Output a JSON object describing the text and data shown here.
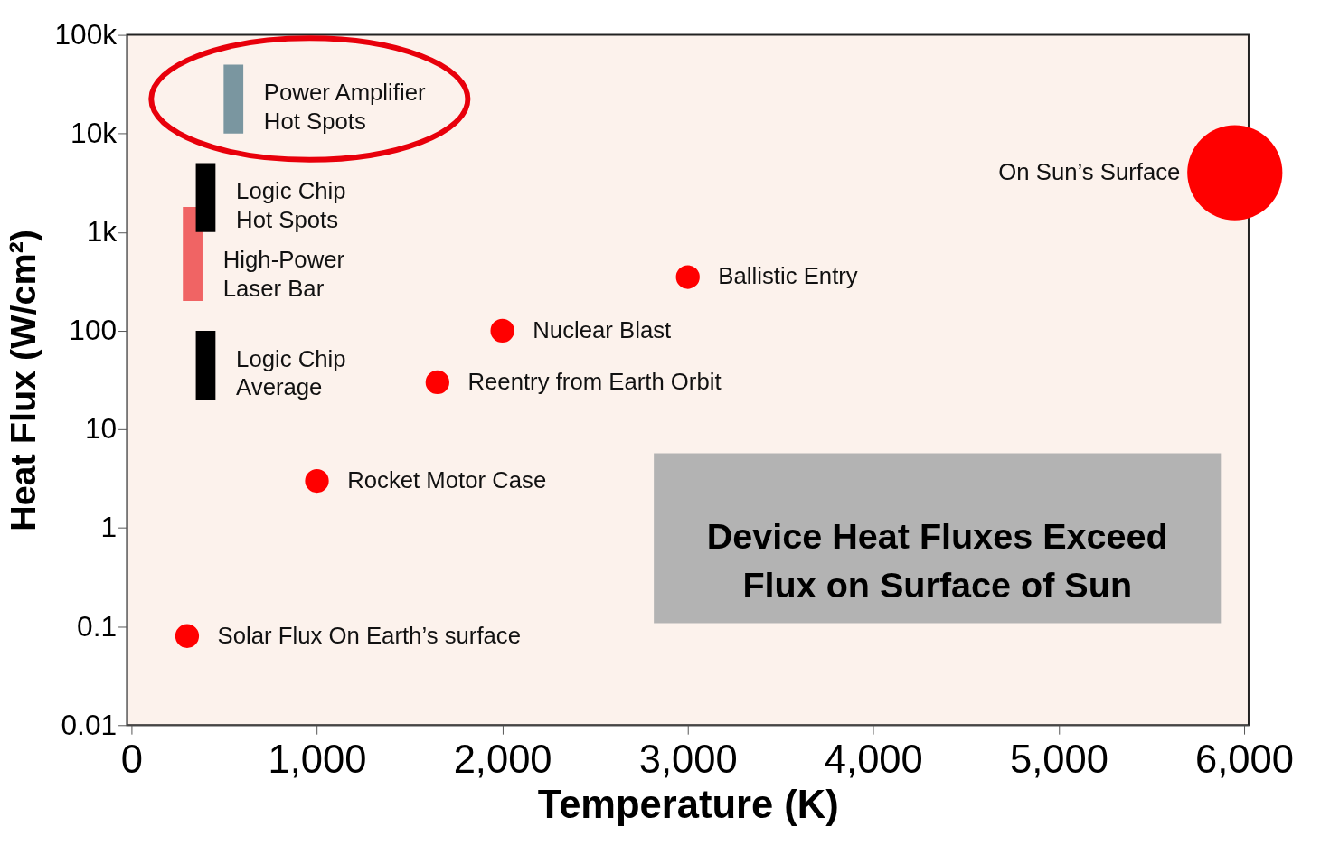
{
  "chart_data": {
    "type": "bubble",
    "xlabel": "Temperature (K)",
    "ylabel": "Heat Flux (W/cm²)",
    "log": "y",
    "grid": false,
    "xlim": [
      0,
      6000
    ],
    "xticks": [
      0,
      {
        "value": 1000,
        "label": "1,000"
      },
      {
        "value": 2000,
        "label": "2,000"
      },
      {
        "value": 3000,
        "label": "3,000"
      },
      {
        "value": 4000,
        "label": "4,000"
      },
      {
        "value": 5000,
        "label": "5,000"
      },
      {
        "value": 6000,
        "label": "6,000"
      }
    ],
    "ylim": [
      0.01,
      100000
    ],
    "yticks": [
      0.01,
      0.1,
      1,
      10,
      100,
      {
        "value": 1000,
        "label": "1k"
      },
      {
        "value": 10000,
        "label": "10k"
      },
      {
        "value": 100000,
        "label": "100k"
      }
    ],
    "series": [
      {
        "color": "#ff0000",
        "x": [
          300,
          1000,
          1650,
          2000,
          3000,
          5950
        ],
        "values": [
          0.08,
          3,
          30,
          100,
          350,
          4000
        ],
        "sizes": [
          0.0625,
          0.0625,
          0.0625,
          0.0625,
          0.0625,
          1
        ]
      },
      {
        "type": "bar",
        "x": [
          330
        ],
        "base": [
          200
        ],
        "values": [
          1600
        ],
        "color": "#f06464"
      },
      {
        "type": "bar",
        "x": [
          400
        ],
        "base": [
          1000
        ],
        "values": [
          4000
        ],
        "color": "#000000"
      },
      {
        "type": "bar",
        "x": [
          400
        ],
        "base": [
          20
        ],
        "values": [
          80
        ],
        "color": "#000000"
      },
      {
        "type": "bar",
        "x": [
          550
        ],
        "base": [
          10000
        ],
        "values": [
          40000
        ],
        "color": "#7a96a0"
      }
    ],
    "annotations": [
      {
        "text": "Power Amplifier\nHot Spots",
        "x": 550,
        "y": 10000
      },
      {
        "text": "Logic Chip\nHot Spots",
        "x": 400,
        "y": 1000
      },
      {
        "text": "High-Power\nLaser Bar",
        "x": 330,
        "y": 200
      },
      {
        "text": "Logic Chip\nAverage",
        "x": 400,
        "y": 20
      },
      {
        "text": "Solar Flux On Earth’s surface",
        "x": 300,
        "y": 0.08
      },
      {
        "text": "Rocket Motor Case",
        "x": 1000,
        "y": 3
      },
      {
        "text": "Reentry from Earth Orbit",
        "x": 1650,
        "y": 30
      },
      {
        "text": "Nuclear Blast",
        "x": 2000,
        "y": 100
      },
      {
        "text": "Ballistic Entry",
        "x": 3000,
        "y": 350
      },
      {
        "text": "On Sun’s Surface",
        "x": 5950,
        "y": 4000
      },
      "Device Heat Fluxes Exceed\nFlux on Surface of Sun"
    ]
  }
}
